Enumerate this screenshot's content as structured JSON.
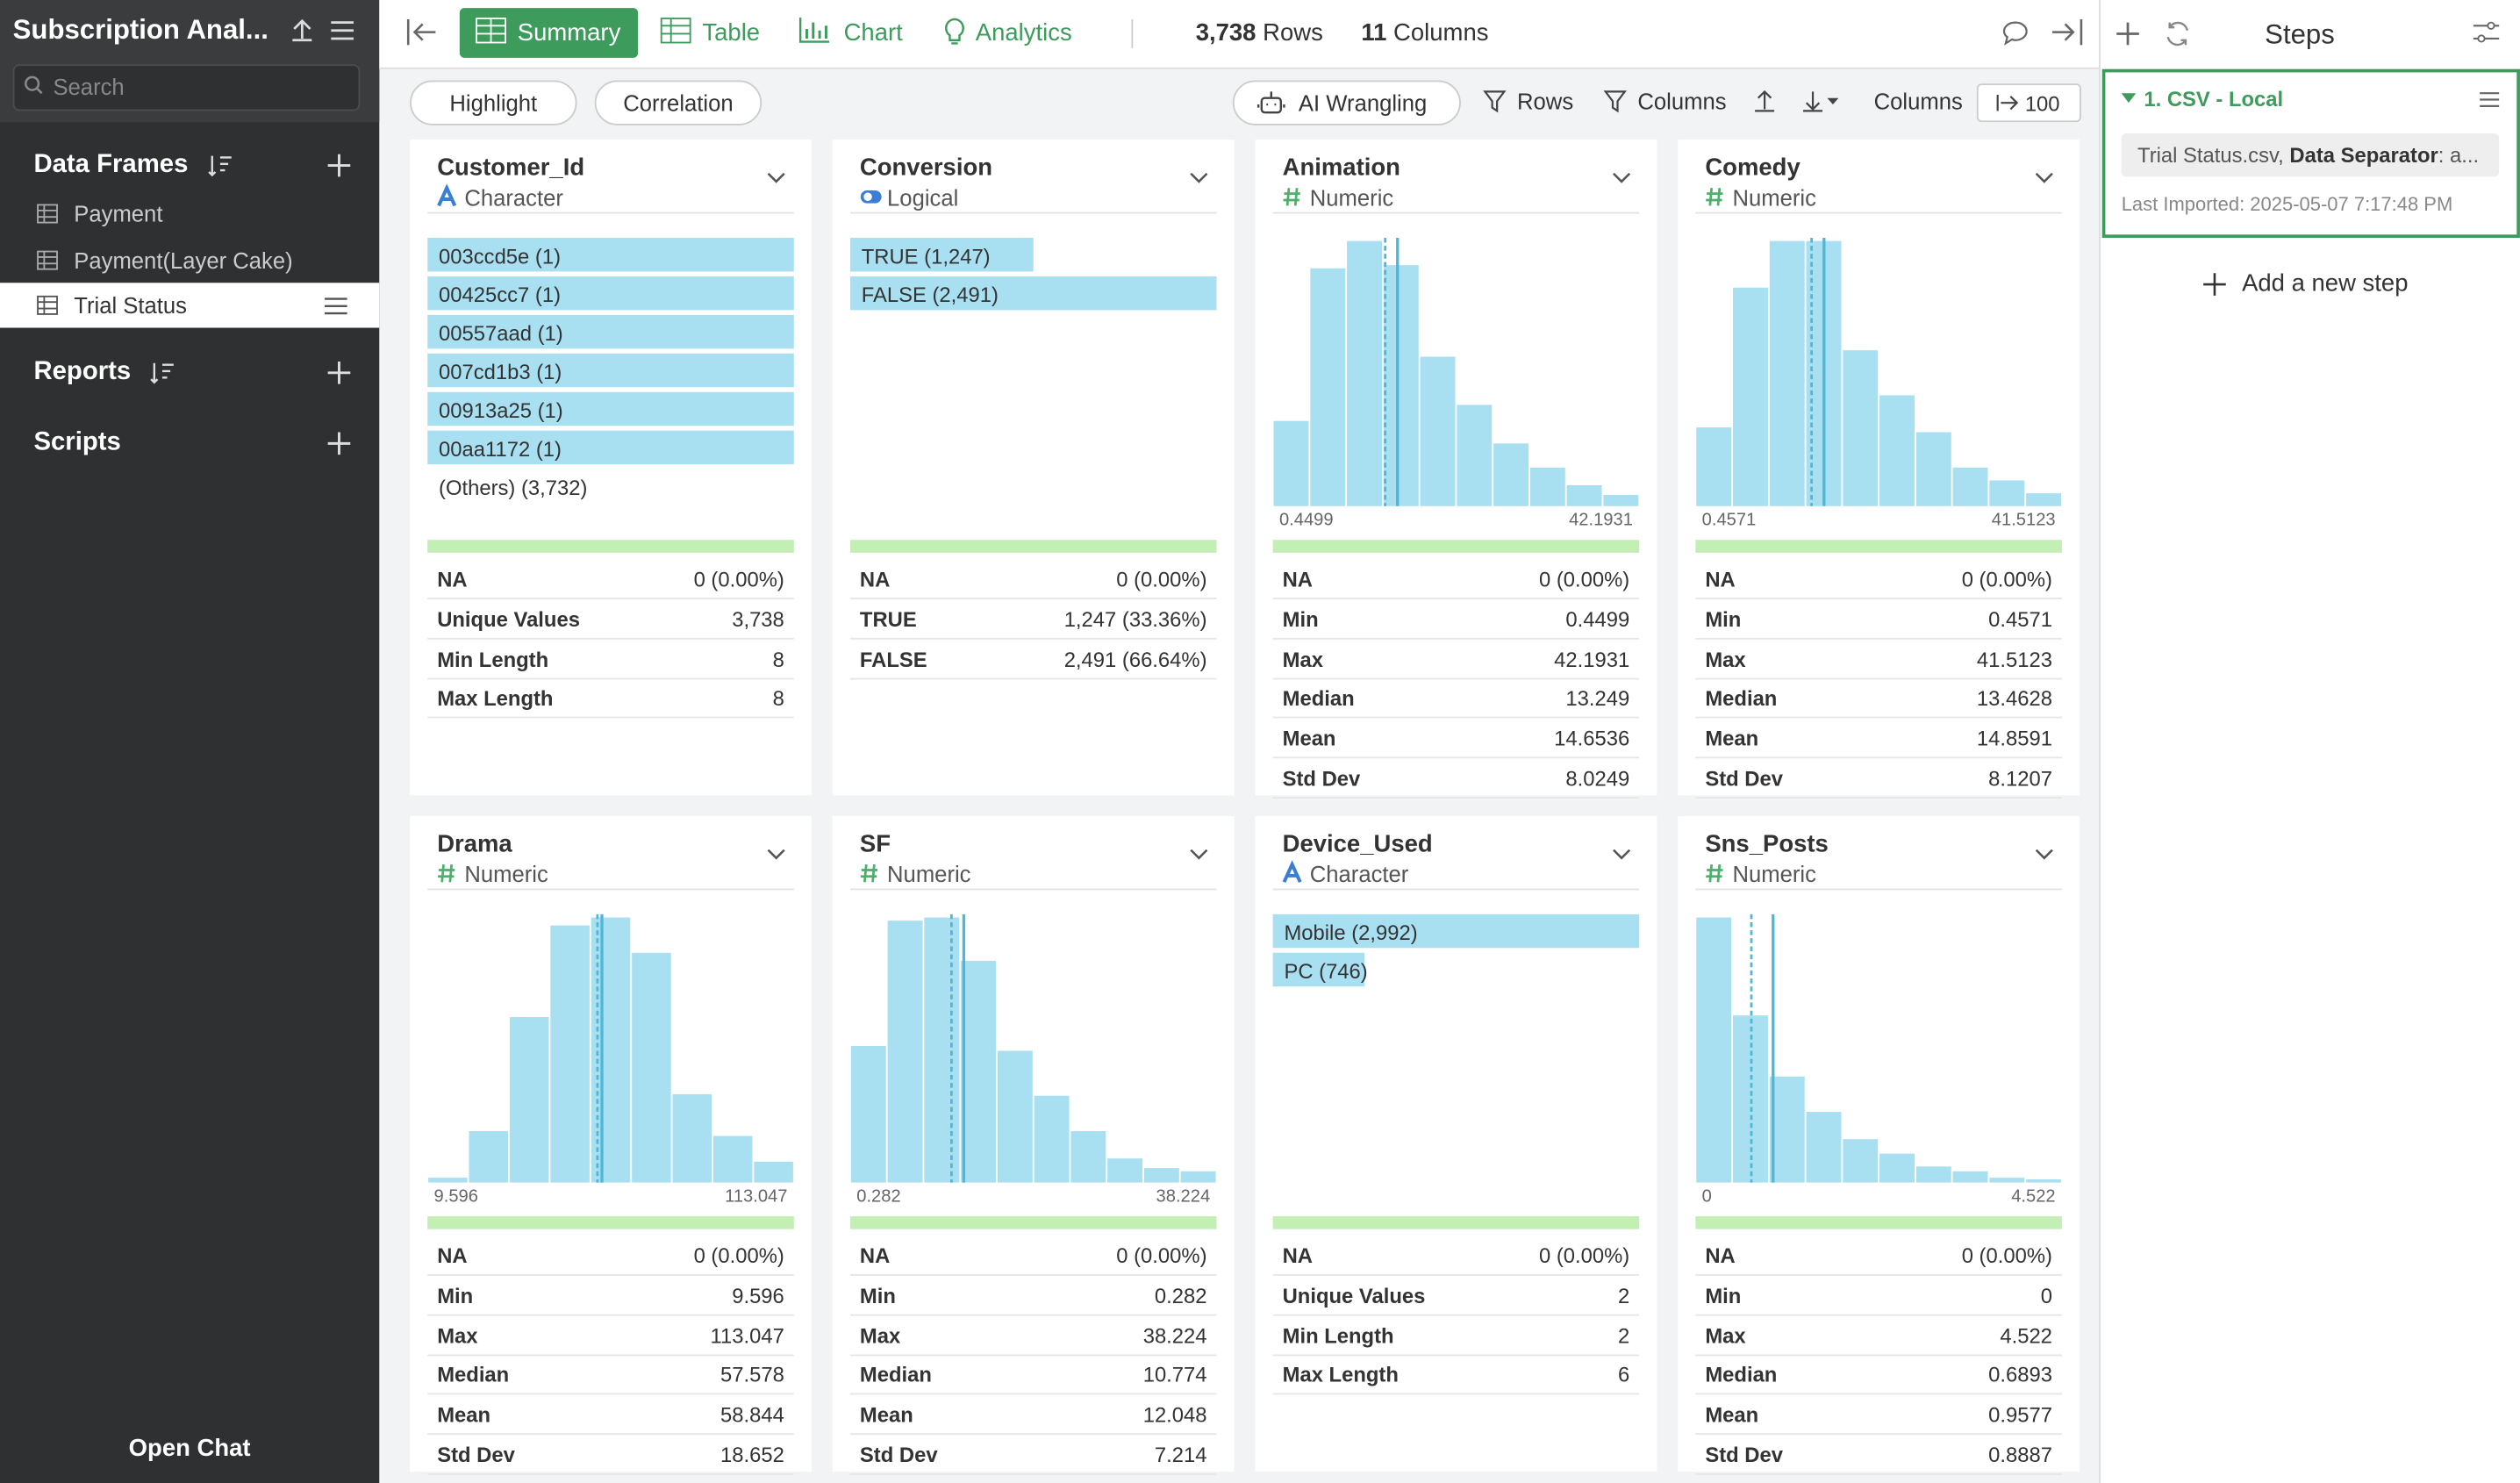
{
  "sidebar": {
    "title": "Subscription Anal...",
    "search_placeholder": "Search",
    "data_frames_heading": "Data Frames",
    "data_frames": [
      "Payment",
      "Payment(Layer Cake)",
      "Trial Status"
    ],
    "reports_heading": "Reports",
    "scripts_heading": "Scripts",
    "open_chat": "Open Chat"
  },
  "toolbar": {
    "tabs": [
      "Summary",
      "Table",
      "Chart",
      "Analytics"
    ],
    "rows_count": "3,738",
    "rows_label": "Rows",
    "columns_count": "11",
    "columns_label": "Columns"
  },
  "subbar": {
    "highlight": "Highlight",
    "correlation": "Correlation",
    "ai_wrangling": "AI Wrangling",
    "rows_filter": "Rows",
    "columns_filter": "Columns",
    "columns_label": "Columns",
    "columns_value": "100"
  },
  "cards": [
    {
      "name": "Customer_Id",
      "dtype": "character",
      "type_label": "Character",
      "items": [
        {
          "label": "003ccd5e (1)",
          "value": 1
        },
        {
          "label": "00425cc7 (1)",
          "value": 1
        },
        {
          "label": "00557aad (1)",
          "value": 1
        },
        {
          "label": "007cd1b3 (1)",
          "value": 1
        },
        {
          "label": "00913a25 (1)",
          "value": 1
        },
        {
          "label": "00aa1172 (1)",
          "value": 1
        }
      ],
      "others": "(Others) (3,732)",
      "stats": [
        {
          "label": "NA",
          "value": "0 (0.00%)"
        },
        {
          "label": "Unique Values",
          "value": "3,738"
        },
        {
          "label": "Min Length",
          "value": 8
        },
        {
          "label": "Max Length",
          "value": 8
        }
      ]
    },
    {
      "name": "Conversion",
      "dtype": "logical",
      "type_label": "Logical",
      "items": [
        {
          "label": "TRUE (1,247)",
          "value": 1247
        },
        {
          "label": "FALSE (2,491)",
          "value": 2491
        }
      ],
      "stats": [
        {
          "label": "NA",
          "value": "0 (0.00%)"
        },
        {
          "label": "TRUE",
          "value": "1,247 (33.36%)"
        },
        {
          "label": "FALSE",
          "value": "2,491 (66.64%)"
        }
      ]
    },
    {
      "name": "Animation",
      "dtype": "numeric",
      "type_label": "Numeric",
      "histogram": {
        "xlim": [
          0.4499,
          42.1931
        ],
        "counts": [
          53,
          148,
          165,
          150,
          93,
          63,
          39,
          24,
          13,
          7
        ]
      },
      "stats": [
        {
          "label": "NA",
          "value": "0 (0.00%)"
        },
        {
          "label": "Min",
          "value": 0.4499
        },
        {
          "label": "Max",
          "value": 42.1931
        },
        {
          "label": "Median",
          "value": 13.249
        },
        {
          "label": "Mean",
          "value": 14.6536
        },
        {
          "label": "Std Dev",
          "value": 8.0249
        }
      ]
    },
    {
      "name": "Comedy",
      "dtype": "numeric",
      "type_label": "Numeric",
      "histogram": {
        "xlim": [
          0.4571,
          41.5123
        ],
        "counts": [
          49,
          136,
          165,
          165,
          97,
          69,
          46,
          24,
          16,
          8
        ]
      },
      "stats": [
        {
          "label": "NA",
          "value": "0 (0.00%)"
        },
        {
          "label": "Min",
          "value": 0.4571
        },
        {
          "label": "Max",
          "value": 41.5123
        },
        {
          "label": "Median",
          "value": 13.4628
        },
        {
          "label": "Mean",
          "value": 14.8591
        },
        {
          "label": "Std Dev",
          "value": 8.1207
        }
      ]
    },
    {
      "name": "Drama",
      "dtype": "numeric",
      "type_label": "Numeric",
      "histogram": {
        "xlim": [
          9.596,
          113.047
        ],
        "counts": [
          3,
          32,
          103,
          160,
          165,
          143,
          55,
          29,
          13
        ]
      },
      "stats": [
        {
          "label": "NA",
          "value": "0 (0.00%)"
        },
        {
          "label": "Min",
          "value": 9.596
        },
        {
          "label": "Max",
          "value": 113.047
        },
        {
          "label": "Median",
          "value": 57.578
        },
        {
          "label": "Mean",
          "value": 58.844
        },
        {
          "label": "Std Dev",
          "value": 18.652
        }
      ]
    },
    {
      "name": "SF",
      "dtype": "numeric",
      "type_label": "Numeric",
      "histogram": {
        "xlim": [
          0.282,
          38.224
        ],
        "counts": [
          85,
          163,
          165,
          138,
          82,
          54,
          32,
          15,
          9,
          7
        ]
      },
      "stats": [
        {
          "label": "NA",
          "value": "0 (0.00%)"
        },
        {
          "label": "Min",
          "value": 0.282
        },
        {
          "label": "Max",
          "value": 38.224
        },
        {
          "label": "Median",
          "value": 10.774
        },
        {
          "label": "Mean",
          "value": 12.048
        },
        {
          "label": "Std Dev",
          "value": 7.214
        }
      ]
    },
    {
      "name": "Device_Used",
      "dtype": "character",
      "type_label": "Character",
      "items": [
        {
          "label": "Mobile (2,992)",
          "value": 2992
        },
        {
          "label": "PC (746)",
          "value": 746
        }
      ],
      "stats": [
        {
          "label": "NA",
          "value": "0 (0.00%)"
        },
        {
          "label": "Unique Values",
          "value": 2
        },
        {
          "label": "Min Length",
          "value": 2
        },
        {
          "label": "Max Length",
          "value": 6
        }
      ]
    },
    {
      "name": "Sns_Posts",
      "dtype": "numeric",
      "type_label": "Numeric",
      "histogram": {
        "xlim": [
          0,
          4.522
        ],
        "counts": [
          165,
          104,
          66,
          44,
          27,
          18,
          10,
          7,
          3,
          2
        ]
      },
      "stats": [
        {
          "label": "NA",
          "value": "0 (0.00%)"
        },
        {
          "label": "Min",
          "value": 0
        },
        {
          "label": "Max",
          "value": 4.522
        },
        {
          "label": "Median",
          "value": 0.6893
        },
        {
          "label": "Mean",
          "value": 0.9577
        },
        {
          "label": "Std Dev",
          "value": 0.8887
        }
      ]
    }
  ],
  "steps": {
    "heading": "Steps",
    "step_title": "1. CSV - Local",
    "detail_file": "Trial Status.csv,",
    "detail_key": "Data Separator",
    "detail_rest": ": a...",
    "last_imported": "Last Imported: 2025-05-07 7:17:48 PM",
    "add_step": "Add a new step"
  }
}
